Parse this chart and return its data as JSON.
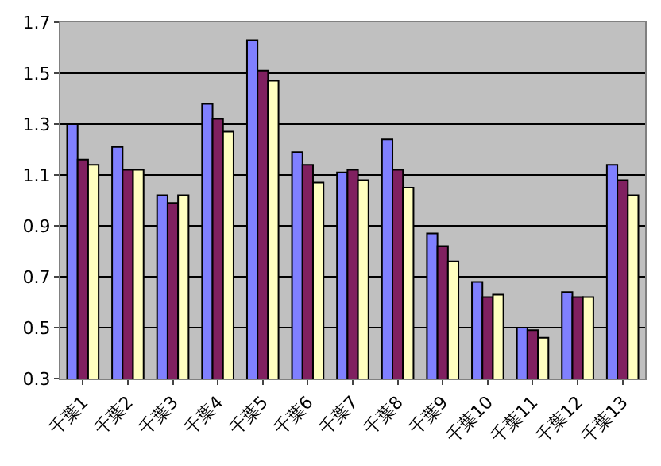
{
  "chart_data": {
    "type": "bar",
    "categories": [
      "千葉1",
      "千葉2",
      "千葉3",
      "千葉4",
      "千葉5",
      "千葉6",
      "千葉7",
      "千葉8",
      "千葉9",
      "千葉10",
      "千葉11",
      "千葉12",
      "千葉13"
    ],
    "series": [
      {
        "color": "#8080ff",
        "values": [
          1.3,
          1.21,
          1.02,
          1.38,
          1.63,
          1.19,
          1.11,
          1.24,
          0.87,
          0.68,
          0.5,
          0.64,
          1.14
        ]
      },
      {
        "color": "#802060",
        "values": [
          1.16,
          1.12,
          0.99,
          1.32,
          1.51,
          1.14,
          1.12,
          1.12,
          0.82,
          0.62,
          0.49,
          0.62,
          1.08
        ]
      },
      {
        "color": "#ffffc0",
        "values": [
          1.14,
          1.12,
          1.02,
          1.27,
          1.47,
          1.07,
          1.08,
          1.05,
          0.76,
          0.63,
          0.46,
          0.62,
          1.02
        ]
      }
    ],
    "ylim": [
      0.3,
      1.7
    ],
    "yticks": [
      0.3,
      0.5,
      0.7,
      0.9,
      1.1,
      1.3,
      1.5,
      1.7
    ],
    "grid": "y"
  }
}
